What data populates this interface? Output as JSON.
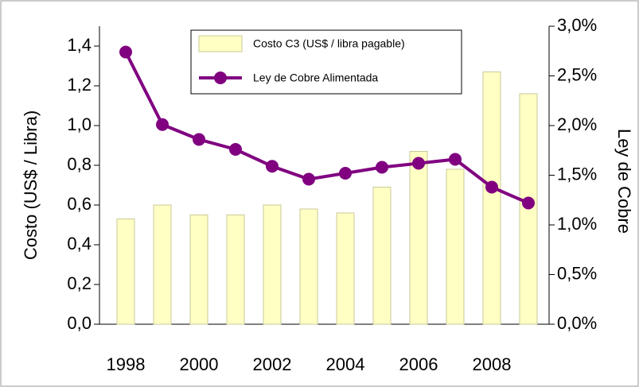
{
  "chart_data": {
    "type": "bar_line",
    "categories": [
      "1998",
      null,
      "2000",
      null,
      "2002",
      null,
      "2004",
      null,
      "2006",
      null,
      "2008",
      null
    ],
    "series": [
      {
        "name": "Costo C3 (US$ / libra pagable)",
        "type": "bar",
        "color": "#ffffc4",
        "values": [
          0.53,
          0.6,
          0.55,
          0.55,
          0.6,
          0.58,
          0.56,
          0.69,
          0.87,
          0.78,
          1.27,
          1.16
        ]
      },
      {
        "name": "Ley de Cobre Alimentada",
        "type": "line",
        "axis": "y2",
        "color": "#800080",
        "values": [
          2.74,
          2.01,
          1.86,
          1.76,
          1.59,
          1.46,
          1.52,
          1.58,
          1.62,
          1.66,
          1.38,
          1.22
        ]
      }
    ],
    "ylabel": "Costo (US$ / Libra)",
    "y2label": "Ley de Cobre",
    "ylim": [
      0,
      1.5
    ],
    "yticks": [
      {
        "value": 0,
        "label": "0,0"
      },
      {
        "value": 0.2,
        "label": "0,2"
      },
      {
        "value": 0.4,
        "label": "0,4"
      },
      {
        "value": 0.6,
        "label": "0,6"
      },
      {
        "value": 0.8,
        "label": "0,8"
      },
      {
        "value": 1.0,
        "label": "1,0"
      },
      {
        "value": 1.2,
        "label": "1,2"
      },
      {
        "value": 1.4,
        "label": "1,4"
      }
    ],
    "y2lim": [
      0,
      3
    ],
    "y2ticks": [
      {
        "value": 0,
        "label": "0,0%"
      },
      {
        "value": 0.5,
        "label": "0,5%"
      },
      {
        "value": 1.0,
        "label": "1,0%"
      },
      {
        "value": 1.5,
        "label": "1,5%"
      },
      {
        "value": 2.0,
        "label": "2,0%"
      },
      {
        "value": 2.5,
        "label": "2,5%"
      },
      {
        "value": 3.0,
        "label": "3,0%"
      }
    ]
  }
}
